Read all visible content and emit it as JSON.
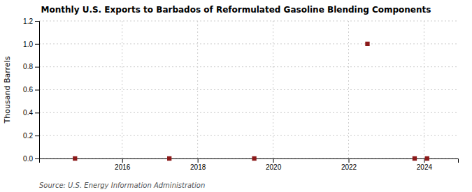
{
  "chart_data": {
    "type": "scatter",
    "title": "Monthly U.S. Exports to Barbados of Reformulated Gasoline Blending Components",
    "y_label": "Thousand Barrels",
    "annotations": [
      "Source: U.S. Energy Information Administration"
    ],
    "x": [
      2014.75,
      2017.25,
      2019.5,
      2022.5,
      2023.75,
      2024.08
    ],
    "values": [
      0.0,
      0.0,
      0.0,
      1.0,
      0.0,
      0.0
    ],
    "color": "#8b1a1a",
    "marker": "square",
    "xlim": [
      2013.8,
      2024.9
    ],
    "xticks": [
      2016,
      2018,
      2020,
      2022,
      2024
    ],
    "ylim": [
      0.0,
      1.2
    ],
    "yticks": [
      {
        "value": 0.0,
        "label": "0.0"
      },
      0.2,
      0.4,
      0.6,
      0.8,
      {
        "value": 1.0,
        "label": "1.0"
      },
      1.2
    ],
    "grid": true
  }
}
